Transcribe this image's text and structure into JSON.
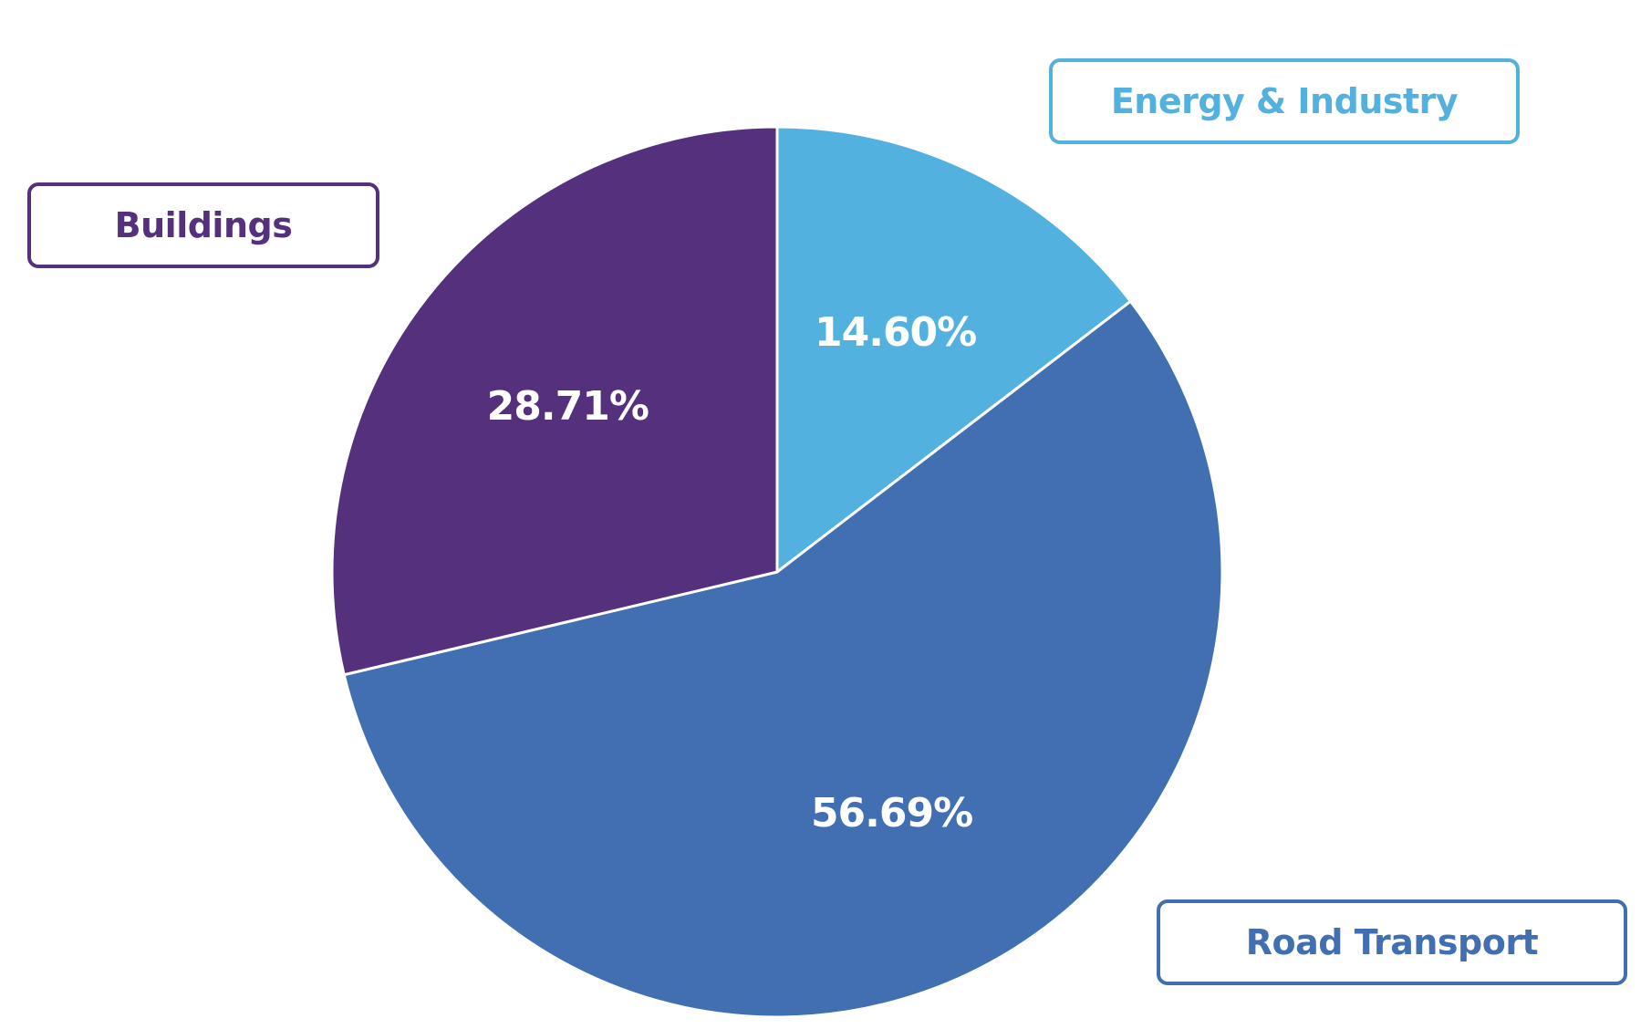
{
  "chart_data": {
    "type": "pie",
    "title": "",
    "start_angle_deg": 0,
    "direction": "clockwise",
    "slices": [
      {
        "label": "Energy & Industry",
        "value": 14.6,
        "display": "14.60%",
        "color": "#52B1DE"
      },
      {
        "label": "Road Transport",
        "value": 56.69,
        "display": "56.69%",
        "color": "#416FB1"
      },
      {
        "label": "Buildings",
        "value": 28.71,
        "display": "28.71%",
        "color": "#54307D"
      }
    ],
    "legend": {
      "placement": "callout-boxes",
      "entries": [
        {
          "label": "Buildings",
          "color": "#54307D"
        },
        {
          "label": "Energy & Industry",
          "color": "#52B1DE"
        },
        {
          "label": "Road Transport",
          "color": "#416FB1"
        }
      ]
    },
    "slice_border_color": "#FFFFFF",
    "label_color": "#FFFFFF"
  }
}
